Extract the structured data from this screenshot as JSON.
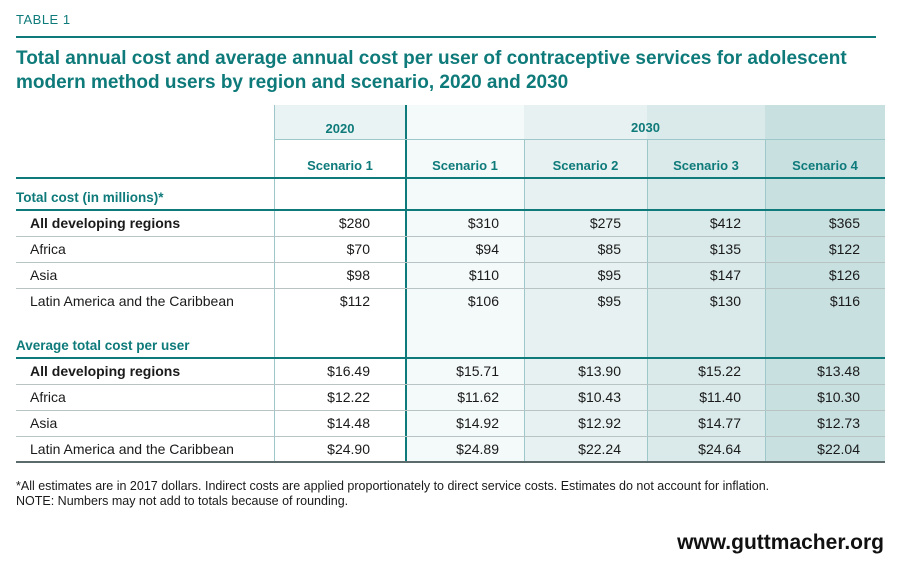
{
  "table_label": "TABLE 1",
  "title": "Total annual cost and average annual cost per user of contraceptive services for adolescent modern method users by region and scenario, 2020 and 2030",
  "headers": {
    "year_2020": "2020",
    "year_2030": "2030",
    "scenarios": [
      "Scenario 1",
      "Scenario 1",
      "Scenario 2",
      "Scenario 3",
      "Scenario 4"
    ]
  },
  "sections": [
    {
      "title": "Total cost (in millions)*",
      "rows": [
        {
          "label": "All developing regions",
          "values": [
            "$280",
            "$310",
            "$275",
            "$412",
            "$365"
          ]
        },
        {
          "label": "Africa",
          "values": [
            "$70",
            "$94",
            "$85",
            "$135",
            "$122"
          ]
        },
        {
          "label": "Asia",
          "values": [
            "$98",
            "$110",
            "$95",
            "$147",
            "$126"
          ]
        },
        {
          "label": "Latin America and the Caribbean",
          "values": [
            "$112",
            "$106",
            "$95",
            "$130",
            "$116"
          ]
        }
      ]
    },
    {
      "title": "Average total cost per user",
      "rows": [
        {
          "label": "All developing regions",
          "values": [
            "$16.49",
            "$15.71",
            "$13.90",
            "$15.22",
            "$13.48"
          ]
        },
        {
          "label": "Africa",
          "values": [
            "$12.22",
            "$11.62",
            "$10.43",
            "$11.40",
            "$10.30"
          ]
        },
        {
          "label": "Asia",
          "values": [
            "$14.48",
            "$14.92",
            "$12.92",
            "$14.77",
            "$12.73"
          ]
        },
        {
          "label": "Latin America and the Caribbean",
          "values": [
            "$24.90",
            "$24.89",
            "$22.24",
            "$24.64",
            "$22.04"
          ]
        }
      ]
    }
  ],
  "notes": {
    "line1": "*All estimates are in 2017 dollars. Indirect costs are applied proportionately to direct service costs. Estimates do not account for inflation.",
    "line2": "NOTE: Numbers may not add to totals because of rounding."
  },
  "website": "www.guttmacher.org"
}
